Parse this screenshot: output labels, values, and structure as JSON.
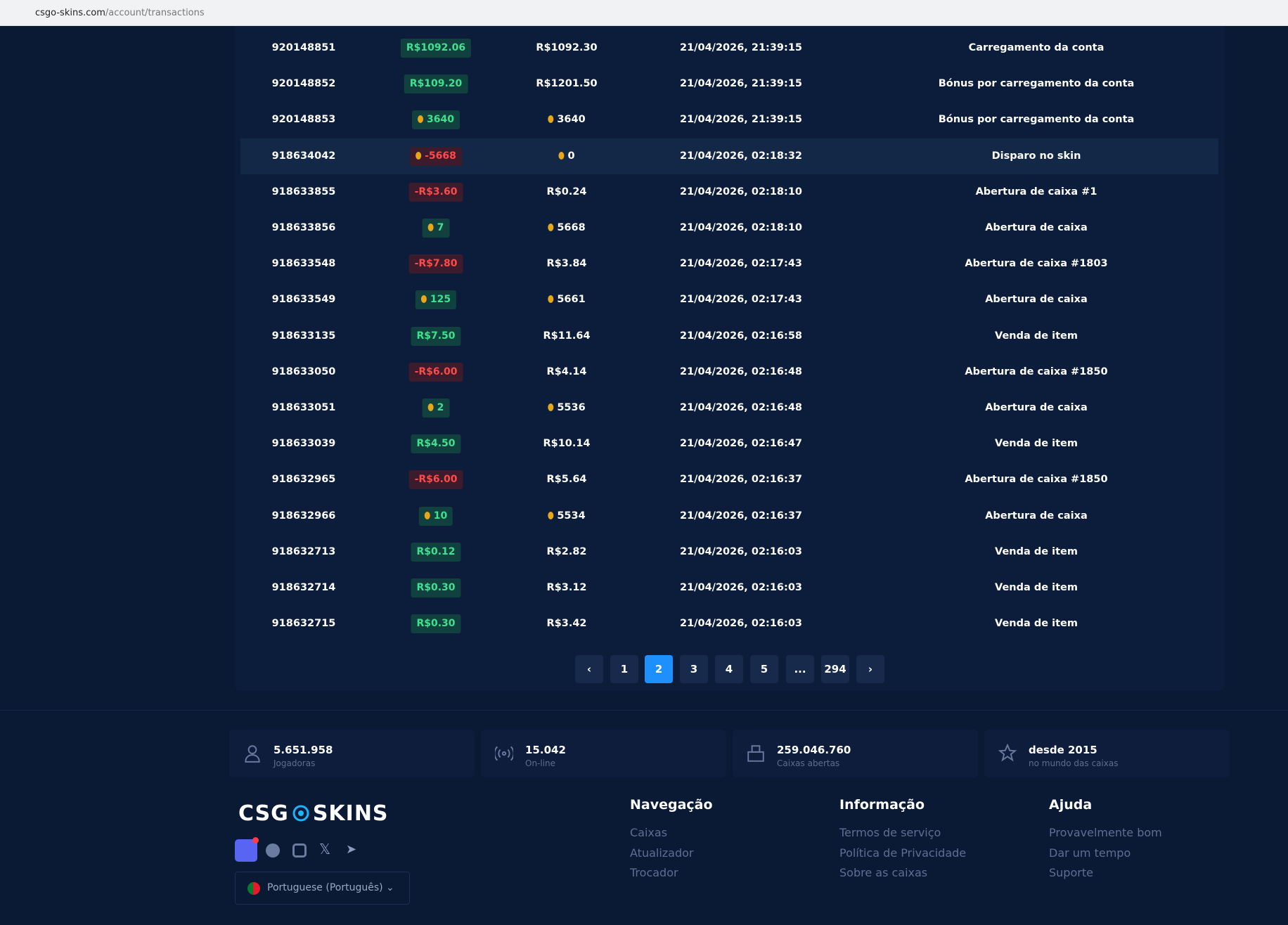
{
  "browser": {
    "url_host": "csgo-skins.com",
    "url_path": "/account/transactions"
  },
  "table": {
    "rows": [
      [
        "920148851",
        "R$1092.06",
        "R$1092.30",
        "21/04/2026, 21:39:15",
        "Carregamento da conta"
      ],
      [
        "920148852",
        "R$109.20",
        "R$1201.50",
        "21/04/2026, 21:39:15",
        "Bónus por carregamento da conta"
      ],
      [
        "920148853",
        "3640",
        "3640",
        "21/04/2026, 21:39:15",
        "Bónus por carregamento da conta"
      ],
      [
        "918634042",
        "-5668",
        "0",
        "21/04/2026, 02:18:32",
        "Disparo no skin"
      ],
      [
        "918633855",
        "-R$3.60",
        "R$0.24",
        "21/04/2026, 02:18:10",
        "Abertura de caixa #1"
      ],
      [
        "918633856",
        "7",
        "5668",
        "21/04/2026, 02:18:10",
        "Abertura de caixa"
      ],
      [
        "918633548",
        "-R$7.80",
        "R$3.84",
        "21/04/2026, 02:17:43",
        "Abertura de caixa #1803"
      ],
      [
        "918633549",
        "125",
        "5661",
        "21/04/2026, 02:17:43",
        "Abertura de caixa"
      ],
      [
        "918633135",
        "R$7.50",
        "R$11.64",
        "21/04/2026, 02:16:58",
        "Venda de item"
      ],
      [
        "918633050",
        "-R$6.00",
        "R$4.14",
        "21/04/2026, 02:16:48",
        "Abertura de caixa #1850"
      ],
      [
        "918633051",
        "2",
        "5536",
        "21/04/2026, 02:16:48",
        "Abertura de caixa"
      ],
      [
        "918633039",
        "R$4.50",
        "R$10.14",
        "21/04/2026, 02:16:47",
        "Venda de item"
      ],
      [
        "918632965",
        "-R$6.00",
        "R$5.64",
        "21/04/2026, 02:16:37",
        "Abertura de caixa #1850"
      ],
      [
        "918632966",
        "10",
        "5534",
        "21/04/2026, 02:16:37",
        "Abertura de caixa"
      ],
      [
        "918632713",
        "R$0.12",
        "R$2.82",
        "21/04/2026, 02:16:03",
        "Venda de item"
      ],
      [
        "918632714",
        "R$0.30",
        "R$3.12",
        "21/04/2026, 02:16:03",
        "Venda de item"
      ],
      [
        "918632715",
        "R$0.30",
        "R$3.42",
        "21/04/2026, 02:16:03",
        "Venda de item"
      ]
    ]
  },
  "pagination": {
    "pages": [
      "1",
      "2",
      "3",
      "4",
      "5",
      "...",
      "294"
    ],
    "current": "2"
  },
  "stats": [
    {
      "value": "5.651.958",
      "label": "Jogadoras"
    },
    {
      "value": "15.042",
      "label": "On-line"
    },
    {
      "value": "259.046.760",
      "label": "Caixas abertas"
    },
    {
      "value": "desde 2015",
      "label": "no mundo das caixas"
    }
  ],
  "footer": {
    "logo_left": "CSG",
    "logo_right": "SKINS",
    "language": "Portuguese (Português)",
    "columns": [
      {
        "heading": "Navegação",
        "links": [
          "Caixas",
          "Atualizador",
          "Trocador"
        ]
      },
      {
        "heading": "Informação",
        "links": [
          "Termos de serviço",
          "Política de Privacidade",
          "Sobre as caixas"
        ]
      },
      {
        "heading": "Ajuda",
        "links": [
          "Provavelmente bom",
          "Dar um tempo",
          "Suporte"
        ]
      }
    ]
  }
}
